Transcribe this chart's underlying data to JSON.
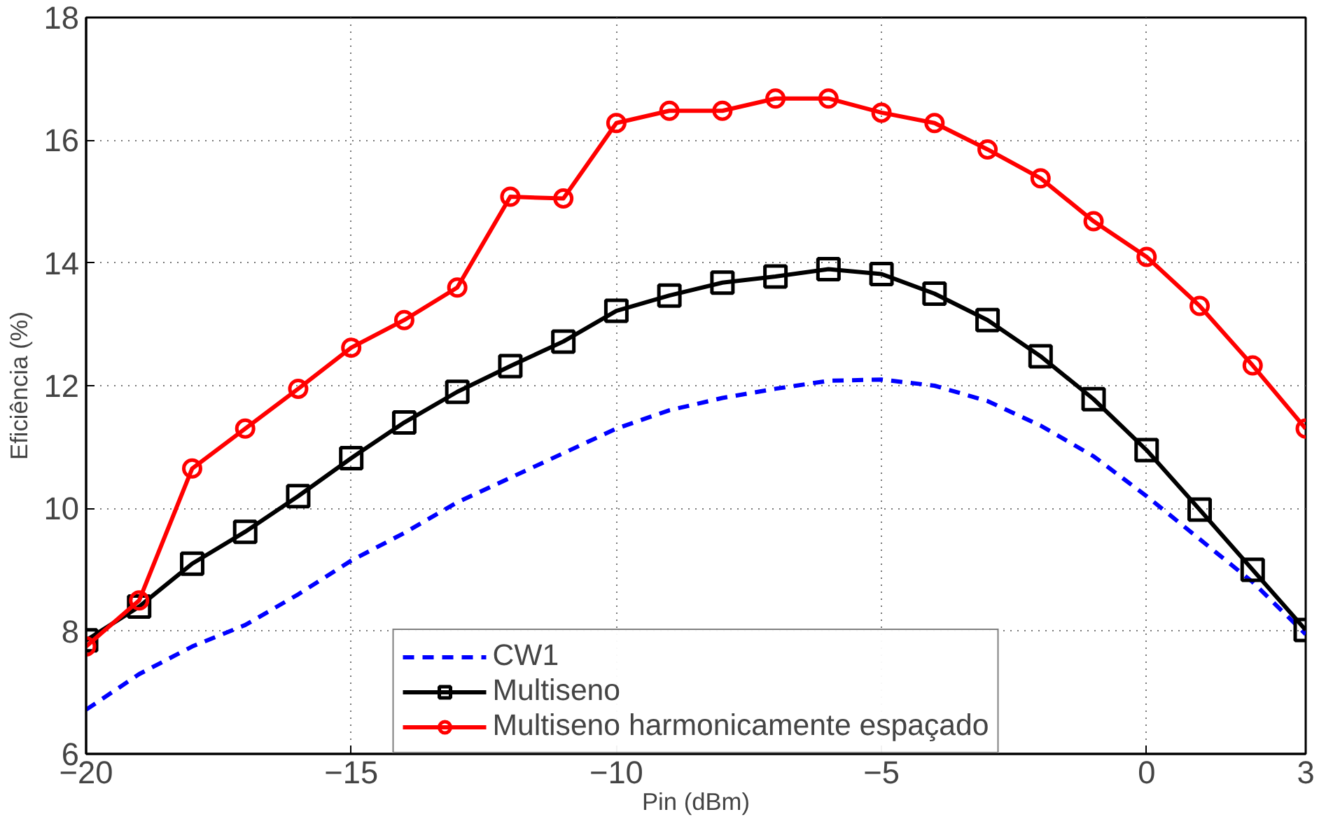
{
  "chart_data": {
    "type": "line",
    "xlabel": "Pin (dBm)",
    "ylabel": "Eficiência (%)",
    "x": [
      -20,
      -19,
      -18,
      -17,
      -16,
      -15,
      -14,
      -13,
      -12,
      -11,
      -10,
      -9,
      -8,
      -7,
      -6,
      -5,
      -4,
      -3,
      -2,
      -1,
      0,
      1,
      2,
      3
    ],
    "series": [
      {
        "name": "CW1",
        "color": "#0000ff",
        "line_style": "dashed",
        "marker": "none",
        "values": [
          6.72,
          7.3,
          7.75,
          8.1,
          8.6,
          9.15,
          9.6,
          10.1,
          10.5,
          10.9,
          11.3,
          11.6,
          11.8,
          11.95,
          12.08,
          12.1,
          12.0,
          11.75,
          11.35,
          10.85,
          10.2,
          9.5,
          8.8,
          7.95
        ]
      },
      {
        "name": "Multiseno",
        "color": "#000000",
        "line_style": "solid",
        "marker": "square",
        "values": [
          7.85,
          8.4,
          9.1,
          9.62,
          10.2,
          10.82,
          11.4,
          11.9,
          12.32,
          12.72,
          13.22,
          13.47,
          13.68,
          13.78,
          13.9,
          13.82,
          13.5,
          13.07,
          12.48,
          11.78,
          10.95,
          9.98,
          9.0,
          8.02
        ]
      },
      {
        "name": "Multiseno harmonicamente espaçado",
        "color": "#ff0000",
        "line_style": "solid",
        "marker": "circle",
        "values": [
          7.75,
          8.5,
          10.65,
          11.3,
          11.95,
          12.62,
          13.07,
          13.6,
          15.08,
          15.05,
          16.28,
          16.48,
          16.48,
          16.68,
          16.68,
          16.45,
          16.28,
          15.85,
          15.38,
          14.68,
          14.1,
          13.3,
          12.33,
          11.3
        ]
      }
    ],
    "xlim": [
      -20,
      3
    ],
    "ylim": [
      6,
      18
    ],
    "xticks": [
      {
        "value": -20,
        "label": "−20"
      },
      {
        "value": -15,
        "label": "−15"
      },
      {
        "value": -10,
        "label": "−10"
      },
      {
        "value": -5,
        "label": "−5"
      },
      0,
      3
    ],
    "yticks": [
      6,
      8,
      10,
      12,
      14,
      16,
      18
    ],
    "grid": true,
    "legend": "bottom"
  }
}
